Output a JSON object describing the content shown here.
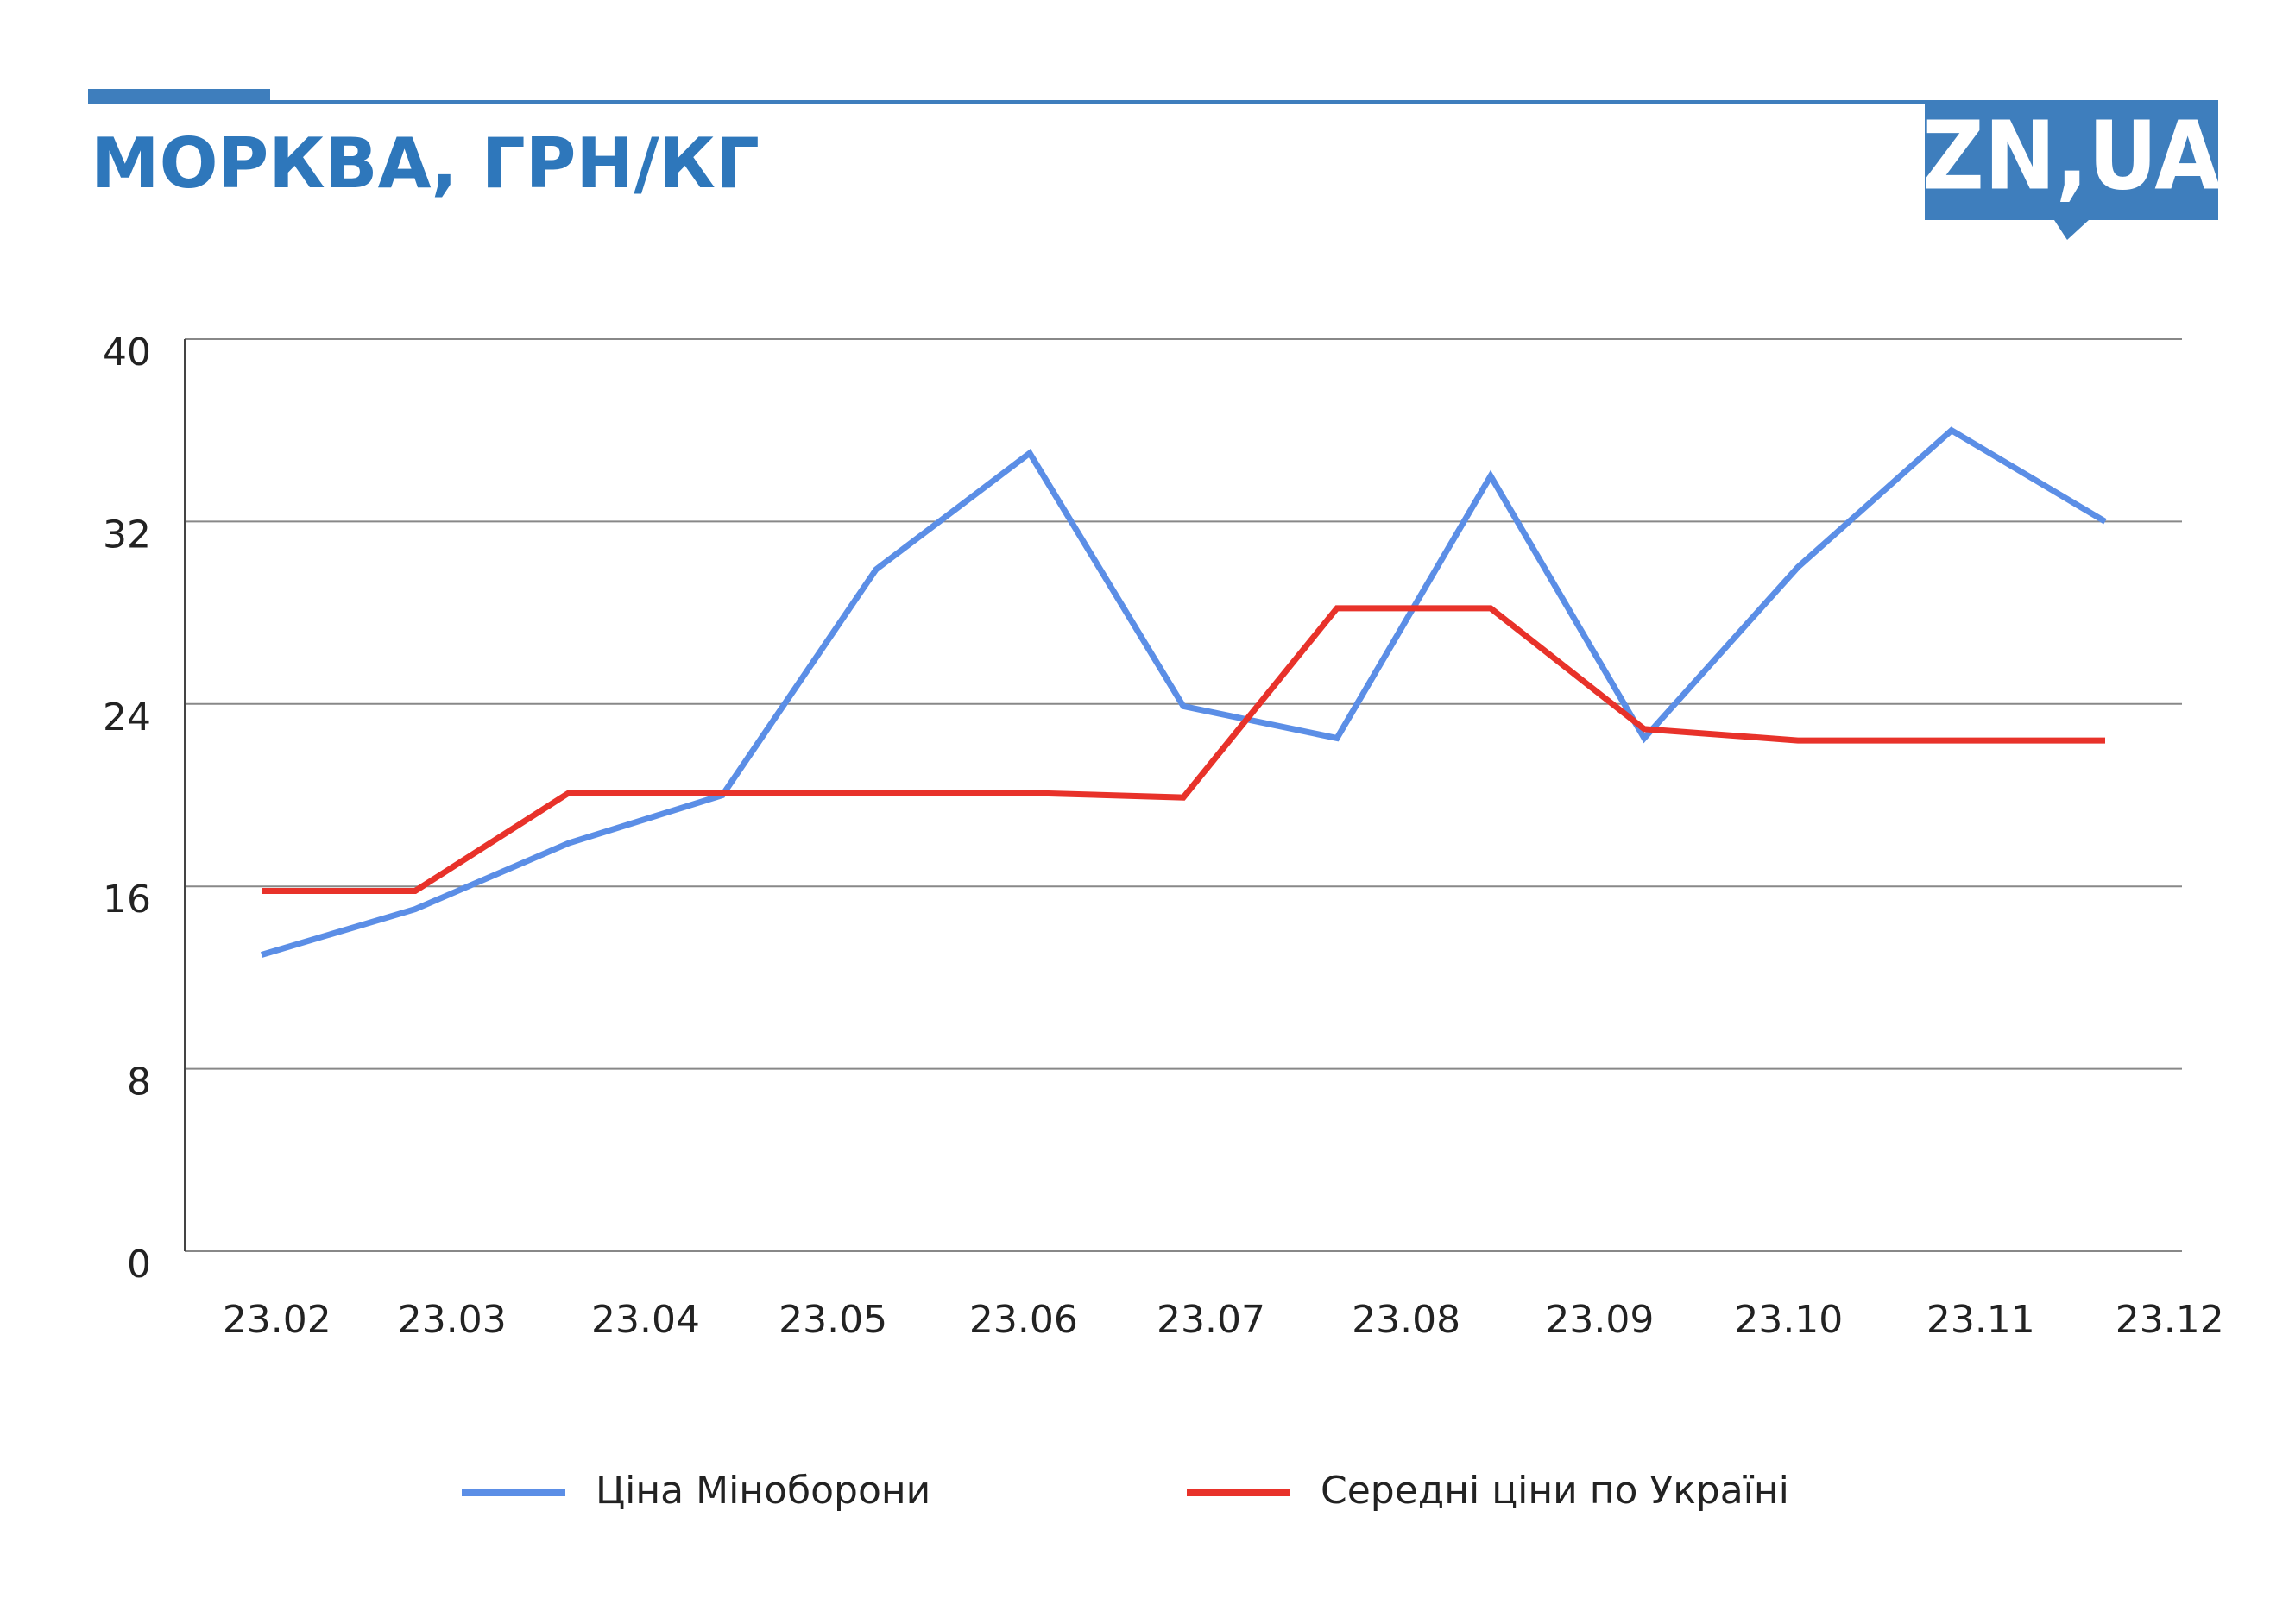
{
  "chart_data": {
    "type": "line",
    "title": "МОРКВА, ГРН/КГ",
    "logo": "ZN,UA",
    "x": [
      0,
      1,
      2,
      3,
      4,
      5,
      6,
      7,
      8,
      9,
      10,
      11,
      12
    ],
    "xlim": [
      -0.5,
      12.5
    ],
    "xticks": [
      {
        "value": 0.1,
        "label": "23.02"
      },
      {
        "value": 1.24,
        "label": "23.03"
      },
      {
        "value": 2.5,
        "label": "23.04"
      },
      {
        "value": 3.72,
        "label": "23.05"
      },
      {
        "value": 4.96,
        "label": "23.06"
      },
      {
        "value": 6.18,
        "label": "23.07"
      },
      {
        "value": 7.45,
        "label": "23.08"
      },
      {
        "value": 8.71,
        "label": "23.09"
      },
      {
        "value": 9.94,
        "label": "23.10"
      },
      {
        "value": 11.19,
        "label": "23.11"
      },
      {
        "value": 12.42,
        "label": "23.12"
      }
    ],
    "ylim": [
      0,
      40
    ],
    "yticks": [
      0,
      8,
      16,
      24,
      32,
      40
    ],
    "grid": true,
    "series": [
      {
        "name": "Ціна Міноборони",
        "color": "#5b8ee6",
        "values": [
          13.0,
          15.0,
          17.9,
          20.0,
          29.9,
          35.0,
          23.9,
          22.5,
          34.0,
          22.5,
          30.0,
          36.0,
          32.0
        ]
      },
      {
        "name": "Середні ціни по Україні",
        "color": "#e8322a",
        "values": [
          15.8,
          15.8,
          20.1,
          20.1,
          20.1,
          20.1,
          19.9,
          28.2,
          28.2,
          22.9,
          22.4,
          22.4,
          22.4
        ]
      }
    ]
  }
}
